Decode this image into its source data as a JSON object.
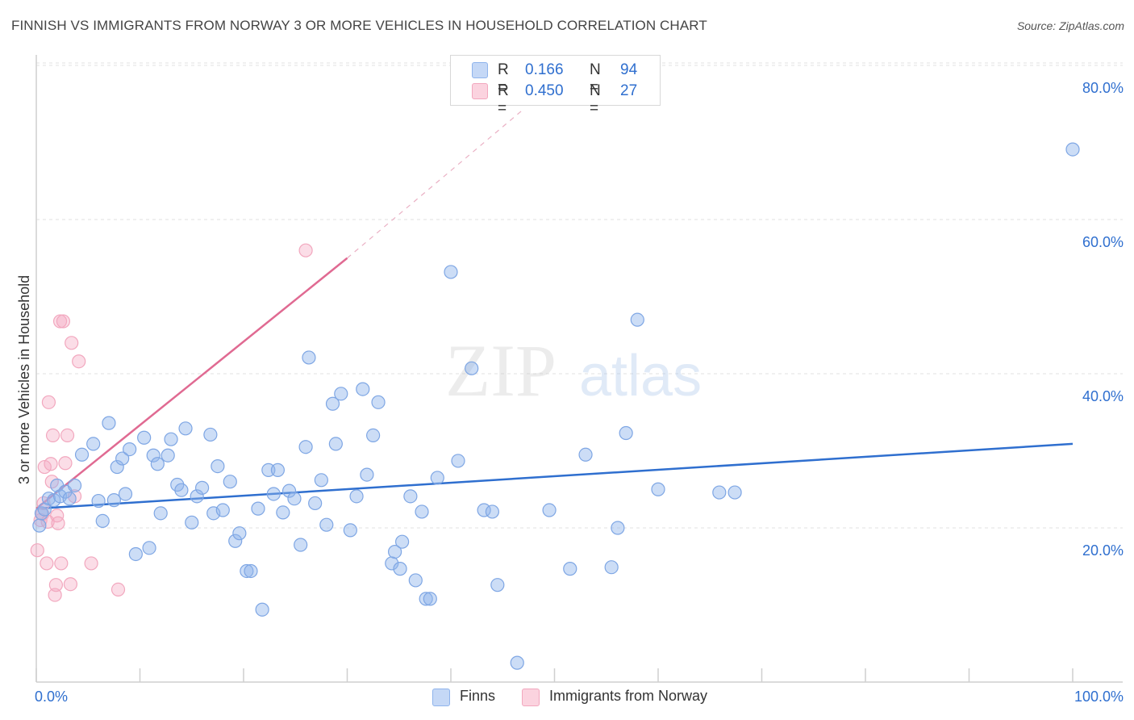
{
  "title": "FINNISH VS IMMIGRANTS FROM NORWAY 3 OR MORE VEHICLES IN HOUSEHOLD CORRELATION CHART",
  "source": "Source: ZipAtlas.com",
  "watermark": {
    "zip": "ZIP",
    "atlas": "atlas"
  },
  "colors": {
    "finns": "#8fb4ec",
    "finns_line": "#2f6fcf",
    "norway": "#f2a7be",
    "norway_line": "#e06a92",
    "axis_text": "#2f6fcf"
  },
  "legend": {
    "finns": {
      "r_label": "R =",
      "r_value": "0.166",
      "n_label": "N =",
      "n_value": "94"
    },
    "norway": {
      "r_label": "R =",
      "r_value": "0.450",
      "n_label": "N =",
      "n_value": "27"
    }
  },
  "bottom_legend": {
    "finns": "Finns",
    "norway": "Immigrants from Norway"
  },
  "chart_data": {
    "type": "scatter",
    "title": "FINNISH VS IMMIGRANTS FROM NORWAY 3 OR MORE VEHICLES IN HOUSEHOLD CORRELATION CHART",
    "xlabel": "",
    "ylabel": "3 or more Vehicles in Household",
    "xlim": [
      0,
      100
    ],
    "ylim": [
      0,
      82
    ],
    "x_tick_labels": [
      {
        "value": 0,
        "label": "0.0%"
      },
      {
        "value": 100,
        "label": "100.0%"
      }
    ],
    "y_ticks": [
      {
        "value": 20,
        "label": "20.0%"
      },
      {
        "value": 40,
        "label": "40.0%"
      },
      {
        "value": 60,
        "label": "60.0%"
      },
      {
        "value": 80,
        "label": "80.0%"
      }
    ],
    "grid": true,
    "legend_position": "top-center",
    "series": [
      {
        "name": "Finns",
        "color": "#8fb4ec",
        "R": 0.166,
        "N": 94,
        "trend": {
          "x": [
            0,
            100
          ],
          "y": [
            22.5,
            30.9
          ]
        },
        "points": [
          [
            0.3,
            20.3
          ],
          [
            0.5,
            21.9
          ],
          [
            0.8,
            22.4
          ],
          [
            1.2,
            23.8
          ],
          [
            1.7,
            23.6
          ],
          [
            2.0,
            25.5
          ],
          [
            2.3,
            24.1
          ],
          [
            2.8,
            24.7
          ],
          [
            3.2,
            23.8
          ],
          [
            3.7,
            25.5
          ],
          [
            4.4,
            29.5
          ],
          [
            5.5,
            30.9
          ],
          [
            6.0,
            23.5
          ],
          [
            6.4,
            20.9
          ],
          [
            7.0,
            33.6
          ],
          [
            7.5,
            23.6
          ],
          [
            7.8,
            27.9
          ],
          [
            8.3,
            29.0
          ],
          [
            8.6,
            24.4
          ],
          [
            9.0,
            30.2
          ],
          [
            9.6,
            16.6
          ],
          [
            10.4,
            31.7
          ],
          [
            10.9,
            17.4
          ],
          [
            11.3,
            29.4
          ],
          [
            11.7,
            28.3
          ],
          [
            12.0,
            21.9
          ],
          [
            12.7,
            29.4
          ],
          [
            13.0,
            31.5
          ],
          [
            13.6,
            25.6
          ],
          [
            14.0,
            24.9
          ],
          [
            14.4,
            32.9
          ],
          [
            15.0,
            20.7
          ],
          [
            15.5,
            24.1
          ],
          [
            16.0,
            25.2
          ],
          [
            16.8,
            32.1
          ],
          [
            17.1,
            21.9
          ],
          [
            17.5,
            28.0
          ],
          [
            18.0,
            22.3
          ],
          [
            18.7,
            26.0
          ],
          [
            19.2,
            18.3
          ],
          [
            19.6,
            19.3
          ],
          [
            20.3,
            14.4
          ],
          [
            20.7,
            14.4
          ],
          [
            21.4,
            22.5
          ],
          [
            21.8,
            9.4
          ],
          [
            22.4,
            27.5
          ],
          [
            22.9,
            24.4
          ],
          [
            23.3,
            27.5
          ],
          [
            23.8,
            22.0
          ],
          [
            24.4,
            24.8
          ],
          [
            24.9,
            23.8
          ],
          [
            25.5,
            17.8
          ],
          [
            26.0,
            30.5
          ],
          [
            26.3,
            42.1
          ],
          [
            26.9,
            23.2
          ],
          [
            27.5,
            26.2
          ],
          [
            28.0,
            20.4
          ],
          [
            28.6,
            36.1
          ],
          [
            28.9,
            30.9
          ],
          [
            29.4,
            37.4
          ],
          [
            30.3,
            19.7
          ],
          [
            30.9,
            24.1
          ],
          [
            31.5,
            38.0
          ],
          [
            31.9,
            26.9
          ],
          [
            32.5,
            32.0
          ],
          [
            33.0,
            36.3
          ],
          [
            34.3,
            15.4
          ],
          [
            34.6,
            16.9
          ],
          [
            35.1,
            14.7
          ],
          [
            35.3,
            18.2
          ],
          [
            36.1,
            24.1
          ],
          [
            36.6,
            13.2
          ],
          [
            37.2,
            22.1
          ],
          [
            37.6,
            10.8
          ],
          [
            38.0,
            10.8
          ],
          [
            38.7,
            26.5
          ],
          [
            40.0,
            53.2
          ],
          [
            40.7,
            28.7
          ],
          [
            42.0,
            40.7
          ],
          [
            43.2,
            22.3
          ],
          [
            44.0,
            22.1
          ],
          [
            44.5,
            12.6
          ],
          [
            46.4,
            2.5
          ],
          [
            49.5,
            22.3
          ],
          [
            51.5,
            14.7
          ],
          [
            53.0,
            29.5
          ],
          [
            55.5,
            14.9
          ],
          [
            56.1,
            20.0
          ],
          [
            56.9,
            32.3
          ],
          [
            58.0,
            47.0
          ],
          [
            60.0,
            25.0
          ],
          [
            65.9,
            24.6
          ],
          [
            67.4,
            24.6
          ],
          [
            100.0,
            69.1
          ]
        ]
      },
      {
        "name": "Immigrants from Norway",
        "color": "#f2a7be",
        "R": 0.45,
        "N": 27,
        "trend": {
          "x": [
            0,
            30
          ],
          "y": [
            22.5,
            55.0
          ]
        },
        "trend_extension": {
          "x": [
            30,
            47
          ],
          "y": [
            55.0,
            74.3
          ]
        },
        "points": [
          [
            0.1,
            17.1
          ],
          [
            0.4,
            21.0
          ],
          [
            0.6,
            21.8
          ],
          [
            0.7,
            23.2
          ],
          [
            0.8,
            27.9
          ],
          [
            1.0,
            15.4
          ],
          [
            1.1,
            20.8
          ],
          [
            1.2,
            36.3
          ],
          [
            1.4,
            28.3
          ],
          [
            1.5,
            26.0
          ],
          [
            1.6,
            32.0
          ],
          [
            1.8,
            11.3
          ],
          [
            1.9,
            12.6
          ],
          [
            2.0,
            21.6
          ],
          [
            2.1,
            20.6
          ],
          [
            2.3,
            46.8
          ],
          [
            2.4,
            15.4
          ],
          [
            2.6,
            46.8
          ],
          [
            2.8,
            28.4
          ],
          [
            3.0,
            32.0
          ],
          [
            3.3,
            12.7
          ],
          [
            3.4,
            44.0
          ],
          [
            3.7,
            24.1
          ],
          [
            4.1,
            41.6
          ],
          [
            5.3,
            15.4
          ],
          [
            7.9,
            12.0
          ],
          [
            26.0,
            56.0
          ]
        ]
      }
    ]
  }
}
